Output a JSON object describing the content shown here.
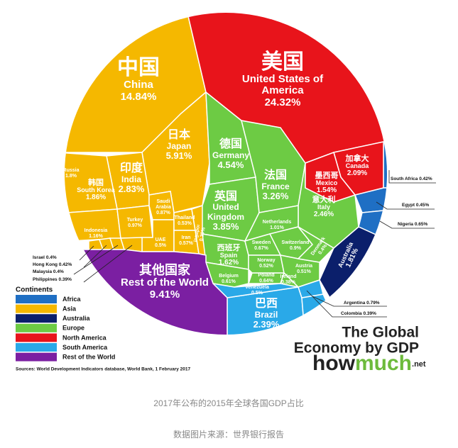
{
  "chart_data": {
    "type": "voronoi",
    "title_lines": [
      "The Global",
      "Economy by GDP"
    ],
    "brand": [
      "how",
      "much",
      ".net"
    ],
    "legend_title": "Continents",
    "source": "Sources: World Development Indicators database, World Bank, 1 February 2017",
    "series": [
      {
        "name": "Africa",
        "color": "#1f6fc4",
        "regions": [
          {
            "name": "South Africa",
            "value": 0.42,
            "value_label": "0.42%"
          },
          {
            "name": "Egypt",
            "value": 0.45,
            "value_label": "0.45%"
          },
          {
            "name": "Nigeria",
            "value": 0.65,
            "value_label": "0.65%"
          }
        ]
      },
      {
        "name": "Asia",
        "color": "#f5b800",
        "regions": [
          {
            "name": "China",
            "name_zh": "中国",
            "value": 14.84,
            "value_label": "14.84%"
          },
          {
            "name": "Japan",
            "name_zh": "日本",
            "value": 5.91,
            "value_label": "5.91%"
          },
          {
            "name": "India",
            "name_zh": "印度",
            "value": 2.83,
            "value_label": "2.83%"
          },
          {
            "name": "South Korea",
            "name_zh": "韩国",
            "value": 1.86,
            "value_label": "1.86%"
          },
          {
            "name": "Russia",
            "name_zh": "俄罗斯",
            "value": 1.8,
            "value_label": "1.8%"
          },
          {
            "name": "Indonesia",
            "value": 1.16,
            "value_label": "1.16%"
          },
          {
            "name": "Turkey",
            "value": 0.97,
            "value_label": "0.97%"
          },
          {
            "name": "Saudi Arabia",
            "value": 0.87,
            "value_label": "0.87%"
          },
          {
            "name": "UAE",
            "value": 0.5,
            "value_label": "0.5%"
          },
          {
            "name": "Thailand",
            "value": 0.53,
            "value_label": "0.53%"
          },
          {
            "name": "Iran",
            "value": 0.57,
            "value_label": "0.57%"
          },
          {
            "name": "Singapore",
            "value": 0.39,
            "value_label": "0.39%"
          },
          {
            "name": "Israel",
            "value": 0.4,
            "value_label": "0.4%"
          },
          {
            "name": "Hong Kong",
            "value": 0.42,
            "value_label": "0.42%"
          },
          {
            "name": "Malaysia",
            "value": 0.4,
            "value_label": "0.4%"
          },
          {
            "name": "Philippines",
            "value": 0.39,
            "value_label": "0.39%"
          }
        ]
      },
      {
        "name": "Australia",
        "color": "#0b1f6b",
        "regions": [
          {
            "name": "Australia",
            "value": 1.81,
            "value_label": "1.81%"
          }
        ]
      },
      {
        "name": "Europe",
        "color": "#6dcb44",
        "regions": [
          {
            "name": "Germany",
            "name_zh": "德国",
            "value": 4.54,
            "value_label": "4.54%"
          },
          {
            "name": "United Kingdom",
            "name_zh": "英国",
            "value": 3.85,
            "value_label": "3.85%"
          },
          {
            "name": "France",
            "name_zh": "法国",
            "value": 3.26,
            "value_label": "3.26%"
          },
          {
            "name": "Italy",
            "name_zh": "意大利",
            "value": 2.46,
            "value_label": "2.46%"
          },
          {
            "name": "Spain",
            "name_zh": "西班牙",
            "value": 1.62,
            "value_label": "1.62%"
          },
          {
            "name": "Netherlands",
            "value": 1.01,
            "value_label": "1.01%"
          },
          {
            "name": "Switzerland",
            "value": 0.9,
            "value_label": "0.9%"
          },
          {
            "name": "Sweden",
            "value": 0.67,
            "value_label": "0.67%"
          },
          {
            "name": "Poland",
            "value": 0.64,
            "value_label": "0.64%"
          },
          {
            "name": "Belgium",
            "value": 0.61,
            "value_label": "0.61%"
          },
          {
            "name": "Norway",
            "value": 0.52,
            "value_label": "0.52%"
          },
          {
            "name": "Austria",
            "value": 0.51,
            "value_label": "0.51%"
          },
          {
            "name": "Denmark",
            "value": 0.4,
            "value_label": "0.4%"
          },
          {
            "name": "Ireland",
            "value": 0.38,
            "value_label": "0.38%"
          }
        ]
      },
      {
        "name": "North America",
        "color": "#e8141b",
        "regions": [
          {
            "name": "United States of America",
            "name_zh": "美国",
            "value": 24.32,
            "value_label": "24.32%"
          },
          {
            "name": "Canada",
            "name_zh": "加拿大",
            "value": 2.09,
            "value_label": "2.09%"
          },
          {
            "name": "Mexico",
            "name_zh": "墨西哥",
            "value": 1.54,
            "value_label": "1.54%"
          }
        ]
      },
      {
        "name": "South America",
        "color": "#2aa9e8",
        "regions": [
          {
            "name": "Brazil",
            "name_zh": "巴西",
            "value": 2.39,
            "value_label": "2.39%"
          },
          {
            "name": "Argentina",
            "value": 0.79,
            "value_label": "0.79%"
          },
          {
            "name": "Colombia",
            "value": 0.39,
            "value_label": "0.39%"
          },
          {
            "name": "Venezuela",
            "value": 0.5,
            "value_label": "0.5%"
          }
        ]
      },
      {
        "name": "Rest of the World",
        "color": "#7b1fa2",
        "regions": [
          {
            "name": "Rest of the World",
            "name_zh": "其他国家",
            "value": 9.41,
            "value_label": "9.41%"
          }
        ]
      }
    ]
  },
  "caption": [
    "2017年公布的2015年全球各国GDP占比",
    "数据图片来源：世界银行报告"
  ]
}
